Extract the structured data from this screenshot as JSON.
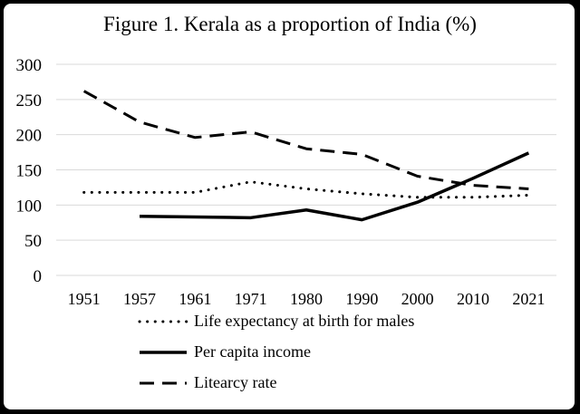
{
  "chart_data": {
    "type": "line",
    "title": "Figure 1. Kerala as a proportion of India (%)",
    "categories": [
      "1951",
      "1957",
      "1961",
      "1971",
      "1980",
      "1990",
      "2000",
      "2010",
      "2021"
    ],
    "ylim": [
      0,
      300
    ],
    "yticks": [
      0,
      50,
      100,
      150,
      200,
      250,
      300
    ],
    "grid": true,
    "legend_placement": "bottom",
    "series": [
      {
        "name": "Life expectancy at birth for males",
        "style": "dotted",
        "values": [
          118,
          118,
          118,
          133,
          123,
          116,
          111,
          111,
          114
        ]
      },
      {
        "name": "Per capita income",
        "style": "solid",
        "values": [
          null,
          84,
          83,
          82,
          93,
          79,
          104,
          138,
          174
        ]
      },
      {
        "name": "Litearcy rate",
        "style": "dashed",
        "values": [
          262,
          218,
          196,
          204,
          180,
          172,
          141,
          128,
          123
        ]
      }
    ],
    "colors": {
      "line": "#000000",
      "grid": "#d9d9d9"
    }
  }
}
